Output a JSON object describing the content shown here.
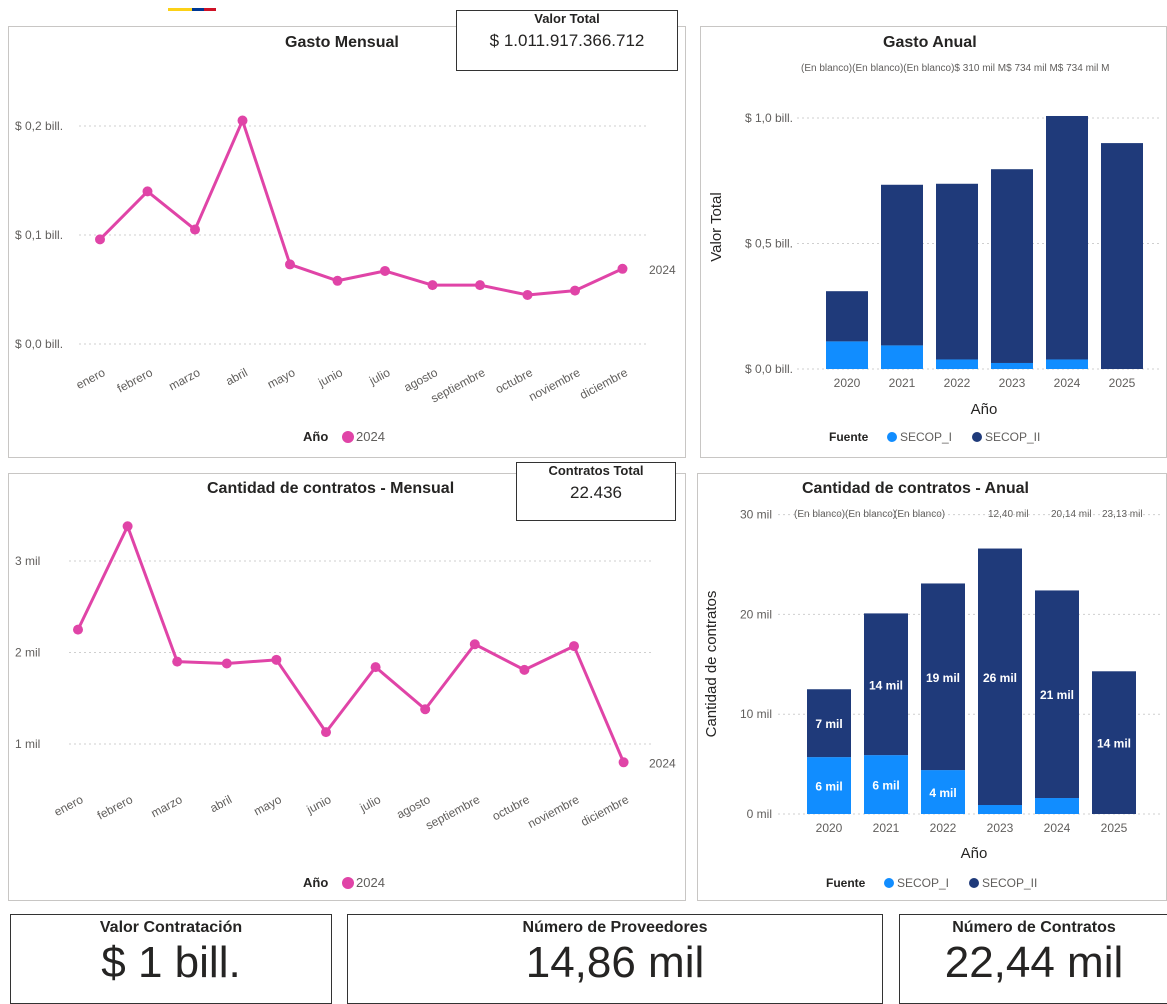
{
  "colors": {
    "pink": "#e044a7",
    "light_blue": "#118dff",
    "dark_blue": "#1f3a7a",
    "grid": "#cfcfcf",
    "axis_text": "#605e5c"
  },
  "gasto_mensual": {
    "title": "Gasto Mensual",
    "legend_title": "Año",
    "legend_item": "2024",
    "series_end_label": "2024"
  },
  "valor_total": {
    "label": "Valor Total",
    "value": "$ 1.011.917.366.712"
  },
  "gasto_anual": {
    "title": "Gasto Anual",
    "ylabel": "Valor Total",
    "xlabel": "Año",
    "legend_title": "Fuente",
    "legend_items": [
      "SECOP_I",
      "SECOP_II"
    ],
    "top_labels": "(En blanco)(En blanco)(En blanco)$ 310 mil M$ 734 mil M$ 734 mil M"
  },
  "contratos_mensual": {
    "title": "Cantidad de contratos - Mensual",
    "legend_title": "Año",
    "legend_item": "2024",
    "series_end_label": "2024"
  },
  "contratos_total": {
    "label": "Contratos Total",
    "value": "22.436"
  },
  "contratos_anual": {
    "title": "Cantidad de contratos - Anual",
    "ylabel": "Cantidad de contratos",
    "xlabel": "Año",
    "legend_title": "Fuente",
    "legend_items": [
      "SECOP_I",
      "SECOP_II"
    ],
    "top_labels": [
      "(En blanco)",
      "(En blanco)",
      "(En blanco)",
      "12,40 mil",
      "20,14 mil",
      "23,13 mil"
    ]
  },
  "cards": [
    {
      "label": "Valor Contratación",
      "value": "$ 1 bill."
    },
    {
      "label": "Número de Proveedores",
      "value": "14,86 mil"
    },
    {
      "label": "Número de Contratos",
      "value": "22,44 mil"
    }
  ],
  "chart_data": [
    {
      "type": "line",
      "title": "Gasto Mensual",
      "categories": [
        "enero",
        "febrero",
        "marzo",
        "abril",
        "mayo",
        "junio",
        "julio",
        "agosto",
        "septiembre",
        "octubre",
        "noviembre",
        "diciembre"
      ],
      "series": [
        {
          "name": "2024",
          "values": [
            0.096,
            0.14,
            0.105,
            0.205,
            0.073,
            0.058,
            0.067,
            0.054,
            0.054,
            0.045,
            0.049,
            0.069
          ]
        }
      ],
      "yticks": [
        "$ 0,0 bill.",
        "$ 0,1 bill.",
        "$ 0,2 bill."
      ],
      "ylim": [
        0,
        0.2
      ],
      "grid": true,
      "legend": "bottom"
    },
    {
      "type": "bar",
      "title": "Gasto Anual",
      "xlabel": "Año",
      "ylabel": "Valor Total",
      "categories": [
        "2020",
        "2021",
        "2022",
        "2023",
        "2024",
        "2025"
      ],
      "series": [
        {
          "name": "SECOP_I",
          "values": [
            0.11,
            0.094,
            0.038,
            0.024,
            0.038,
            0
          ]
        },
        {
          "name": "SECOP_II",
          "values": [
            0.2,
            0.64,
            0.7,
            0.772,
            0.97,
            0.9
          ]
        }
      ],
      "yticks": [
        "$ 0,0 bill.",
        "$ 0,5 bill.",
        "$ 1,0 bill."
      ],
      "ylim": [
        0,
        1.0
      ],
      "grid": true,
      "legend": "bottom"
    },
    {
      "type": "line",
      "title": "Cantidad de contratos - Mensual",
      "categories": [
        "enero",
        "febrero",
        "marzo",
        "abril",
        "mayo",
        "junio",
        "julio",
        "agosto",
        "septiembre",
        "octubre",
        "noviembre",
        "diciembre"
      ],
      "series": [
        {
          "name": "2024",
          "values": [
            2250,
            3380,
            1900,
            1880,
            1920,
            1130,
            1840,
            1380,
            2090,
            1810,
            2070,
            800
          ]
        }
      ],
      "yticks": [
        "1 mil",
        "2 mil",
        "3 mil"
      ],
      "grid": true,
      "legend": "bottom"
    },
    {
      "type": "bar",
      "title": "Cantidad de contratos - Anual",
      "xlabel": "Año",
      "ylabel": "Cantidad de contratos",
      "categories": [
        "2020",
        "2021",
        "2022",
        "2023",
        "2024",
        "2025"
      ],
      "series": [
        {
          "name": "SECOP_I",
          "values": [
            5700,
            5900,
            4400,
            900,
            1600,
            0
          ],
          "labels": [
            "6 mil",
            "6 mil",
            "4 mil",
            "",
            "",
            ""
          ]
        },
        {
          "name": "SECOP_II",
          "values": [
            6800,
            14200,
            18700,
            25700,
            20800,
            14300
          ],
          "labels": [
            "7 mil",
            "14 mil",
            "19 mil",
            "26 mil",
            "21 mil",
            "14 mil"
          ]
        }
      ],
      "yticks": [
        "0 mil",
        "10 mil",
        "20 mil",
        "30 mil"
      ],
      "ylim": [
        0,
        30000
      ],
      "grid": true,
      "legend": "bottom"
    }
  ]
}
